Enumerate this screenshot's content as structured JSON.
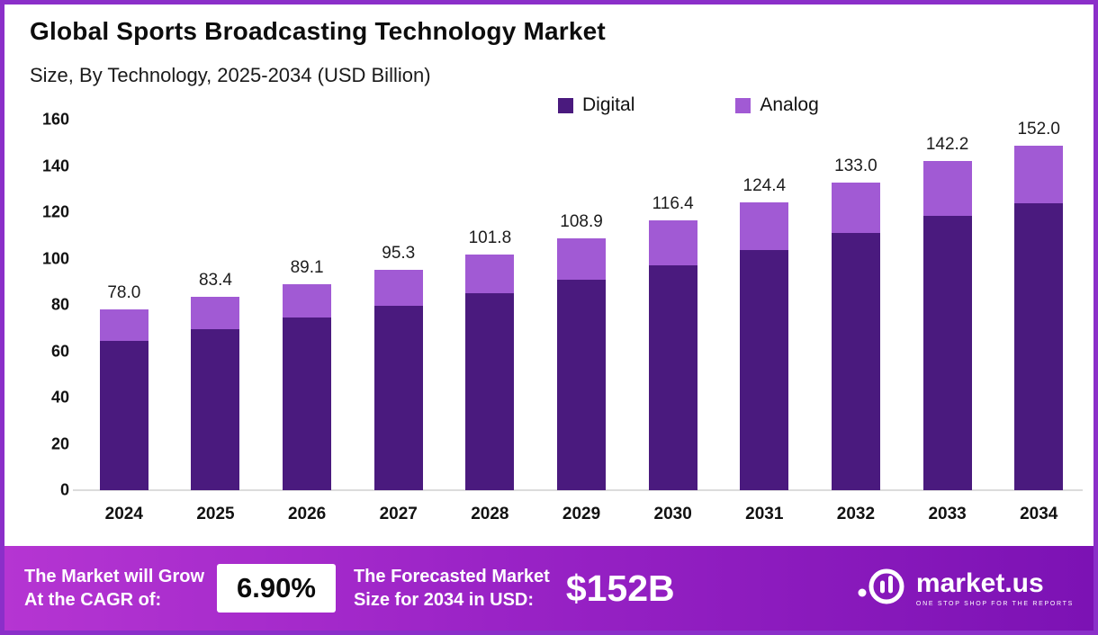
{
  "header": {
    "title": "Global Sports Broadcasting Technology Market",
    "subtitle": "Size, By Technology, 2025-2034 (USD Billion)"
  },
  "chart_data": {
    "type": "bar",
    "stacked": true,
    "title": "Global Sports Broadcasting Technology Market",
    "subtitle": "Size, By Technology, 2025-2034 (USD Billion)",
    "unit": "USD Billion",
    "categories": [
      "2024",
      "2025",
      "2026",
      "2027",
      "2028",
      "2029",
      "2030",
      "2031",
      "2032",
      "2033",
      "2034"
    ],
    "series": [
      {
        "name": "Digital",
        "color": "#4a1a7e",
        "values": [
          64.5,
          69.5,
          74.5,
          79.5,
          85.0,
          90.8,
          97.0,
          103.8,
          110.9,
          118.6,
          126.7
        ]
      },
      {
        "name": "Analog",
        "color": "#a15ad4",
        "values": [
          13.5,
          13.9,
          14.6,
          15.8,
          16.8,
          18.1,
          19.4,
          20.6,
          22.1,
          23.6,
          25.3
        ]
      }
    ],
    "totals": [
      78.0,
      83.4,
      89.1,
      95.3,
      101.8,
      108.9,
      116.4,
      124.4,
      133.0,
      142.2,
      152.0
    ],
    "total_labels": [
      "78.0",
      "83.4",
      "89.1",
      "95.3",
      "101.8",
      "108.9",
      "116.4",
      "124.4",
      "133.0",
      "142.2",
      "152.0"
    ],
    "ylim": [
      0,
      160
    ],
    "yticks": [
      0,
      20,
      40,
      60,
      80,
      100,
      120,
      140,
      160
    ],
    "legend_position": "top",
    "grid": false
  },
  "footer": {
    "cagr_label_line1": "The Market will Grow",
    "cagr_label_line2": "At the CAGR of:",
    "cagr_value": "6.90%",
    "forecast_label_line1": "The Forecasted Market",
    "forecast_label_line2": "Size for 2034 in USD:",
    "forecast_value": "$152B",
    "brand": {
      "name": "market.us",
      "tagline": "ONE STOP SHOP FOR THE REPORTS"
    }
  },
  "colors": {
    "digital": "#4a1a7e",
    "analog": "#a15ad4",
    "border": "#8b2fc9",
    "banner_gradient_start": "#b535d2",
    "banner_gradient_end": "#7c12b4"
  }
}
